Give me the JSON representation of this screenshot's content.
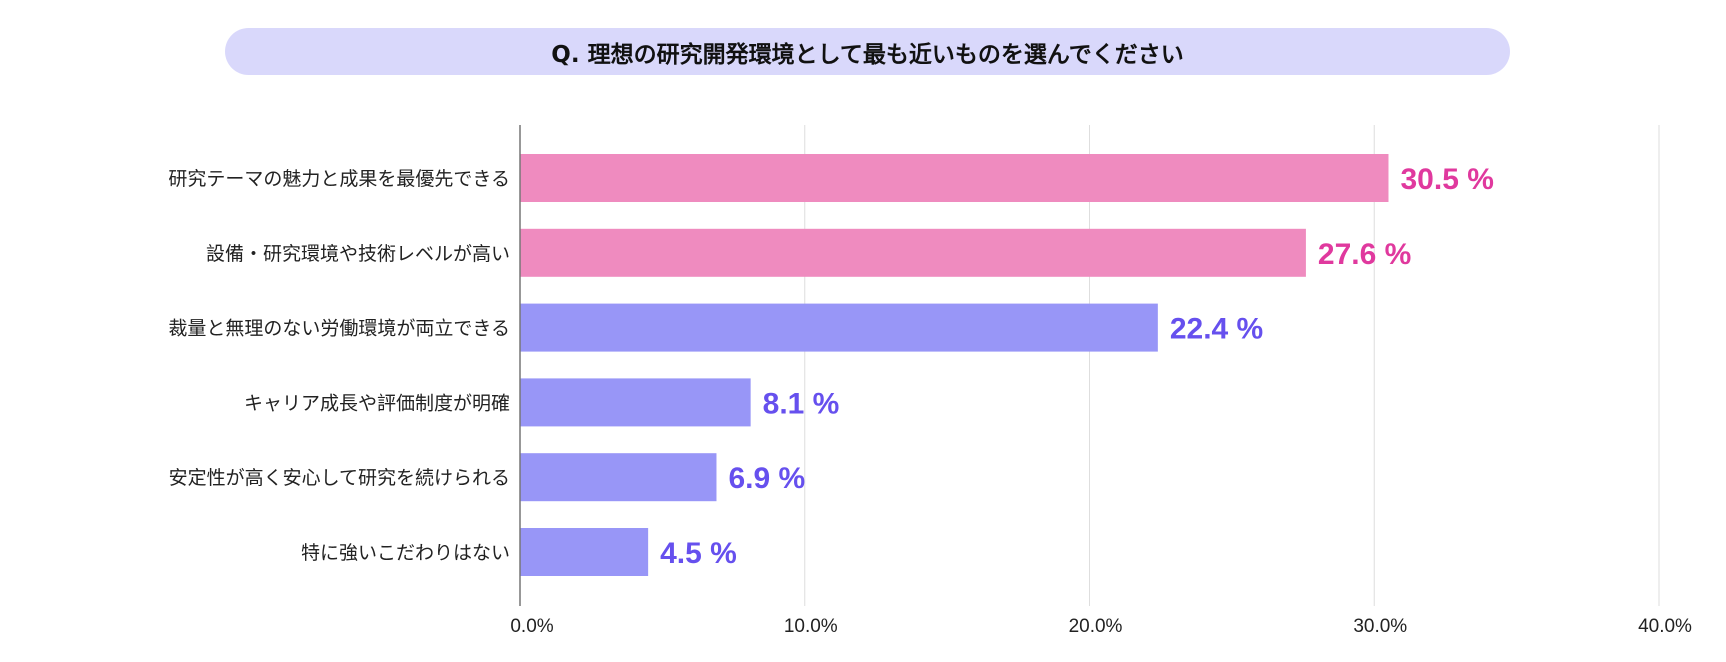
{
  "chart_data": {
    "type": "bar",
    "orientation": "horizontal",
    "title": "Q. 理想の研究開発環境として最も近いものを選んでください",
    "categories": [
      "研究テーマの魅力と成果を最優先できる",
      "設備・研究環境や技術レベルが高い",
      "裁量と無理のない労働環境が両立できる",
      "キャリア成長や評価制度が明確",
      "安定性が高く安心して研究を続けられる",
      "特に強いこだわりはない"
    ],
    "values": [
      30.5,
      27.6,
      22.4,
      8.1,
      6.9,
      4.5
    ],
    "data_labels": [
      "30.5 %",
      "27.6 %",
      "22.4 %",
      "8.1 %",
      "6.9 %",
      "4.5 %"
    ],
    "highlight": [
      true,
      true,
      false,
      false,
      false,
      false
    ],
    "xlim": [
      0,
      40
    ],
    "xticks": [
      0,
      10,
      20,
      30,
      40
    ],
    "xtick_labels": [
      "0.0%",
      "10.0%",
      "20.0%",
      "30.0%",
      "40.0%"
    ],
    "grid": true,
    "colors": {
      "highlight_bar": "#ef8bbf",
      "highlight_text": "#e0399e",
      "bar": "#9896f7",
      "text": "#6650ee",
      "title_bg": "#d9d8fb"
    }
  }
}
